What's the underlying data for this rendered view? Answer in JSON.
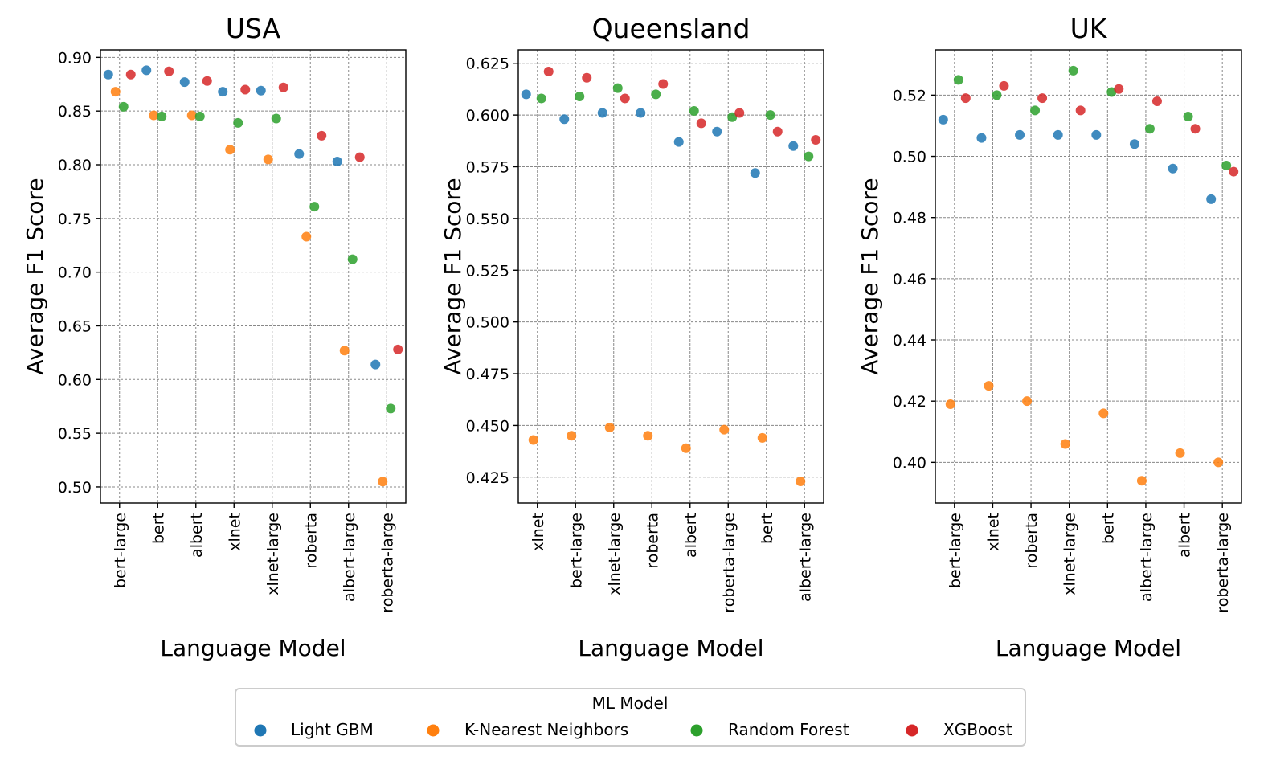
{
  "legend": {
    "title": "ML Model",
    "placement": "bottom-center",
    "entries": [
      {
        "name": "Light GBM",
        "color": "#1f77b4"
      },
      {
        "name": "K-Nearest Neighbors",
        "color": "#ff7f0e"
      },
      {
        "name": "Random Forest",
        "color": "#2ca02c"
      },
      {
        "name": "XGBoost",
        "color": "#d62728"
      }
    ]
  },
  "chart_data": [
    {
      "type": "scatter",
      "title": "USA",
      "xlabel": "Language Model",
      "ylabel": "Average F1 Score",
      "grid": true,
      "categories": [
        "bert-large",
        "bert",
        "albert",
        "xlnet",
        "xlnet-large",
        "roberta",
        "albert-large",
        "roberta-large"
      ],
      "ylim": [
        0.485,
        0.907
      ],
      "yticks": [
        0.5,
        0.55,
        0.6,
        0.65,
        0.7,
        0.75,
        0.8,
        0.85,
        0.9
      ],
      "ytick_labels": [
        "0.50",
        "0.55",
        "0.60",
        "0.65",
        "0.70",
        "0.75",
        "0.80",
        "0.85",
        "0.90"
      ],
      "series": [
        {
          "name": "Light GBM",
          "values": [
            0.884,
            0.888,
            0.877,
            0.868,
            0.869,
            0.81,
            0.803,
            0.614
          ]
        },
        {
          "name": "K-Nearest Neighbors",
          "values": [
            0.868,
            0.846,
            0.846,
            0.814,
            0.805,
            0.733,
            0.627,
            0.505
          ]
        },
        {
          "name": "Random Forest",
          "values": [
            0.854,
            0.845,
            0.845,
            0.839,
            0.843,
            0.761,
            0.712,
            0.573
          ]
        },
        {
          "name": "XGBoost",
          "values": [
            0.884,
            0.887,
            0.878,
            0.87,
            0.872,
            0.827,
            0.807,
            0.628
          ]
        }
      ]
    },
    {
      "type": "scatter",
      "title": "Queensland",
      "xlabel": "Language Model",
      "ylabel": "Average F1 Score",
      "grid": true,
      "categories": [
        "xlnet",
        "bert-large",
        "xlnet-large",
        "roberta",
        "albert",
        "roberta-large",
        "bert",
        "albert-large"
      ],
      "ylim": [
        0.4125,
        0.6315
      ],
      "yticks": [
        0.425,
        0.45,
        0.475,
        0.5,
        0.525,
        0.55,
        0.575,
        0.6,
        0.625
      ],
      "ytick_labels": [
        "0.425",
        "0.450",
        "0.475",
        "0.500",
        "0.525",
        "0.550",
        "0.575",
        "0.600",
        "0.625"
      ],
      "series": [
        {
          "name": "Light GBM",
          "values": [
            0.61,
            0.598,
            0.601,
            0.601,
            0.587,
            0.592,
            0.572,
            0.585
          ]
        },
        {
          "name": "K-Nearest Neighbors",
          "values": [
            0.443,
            0.445,
            0.449,
            0.445,
            0.439,
            0.448,
            0.444,
            0.423
          ]
        },
        {
          "name": "Random Forest",
          "values": [
            0.608,
            0.609,
            0.613,
            0.61,
            0.602,
            0.599,
            0.6,
            0.58
          ]
        },
        {
          "name": "XGBoost",
          "values": [
            0.621,
            0.618,
            0.608,
            0.615,
            0.596,
            0.601,
            0.592,
            0.588
          ]
        }
      ]
    },
    {
      "type": "scatter",
      "title": "UK",
      "xlabel": "Language Model",
      "ylabel": "Average F1 Score",
      "grid": true,
      "categories": [
        "bert-large",
        "xlnet",
        "roberta",
        "xlnet-large",
        "bert",
        "albert-large",
        "albert",
        "roberta-large"
      ],
      "ylim": [
        0.3867,
        0.5348
      ],
      "yticks": [
        0.4,
        0.42,
        0.44,
        0.46,
        0.48,
        0.5,
        0.52
      ],
      "ytick_labels": [
        "0.40",
        "0.42",
        "0.44",
        "0.46",
        "0.48",
        "0.50",
        "0.52"
      ],
      "series": [
        {
          "name": "Light GBM",
          "values": [
            0.512,
            0.506,
            0.507,
            0.507,
            0.507,
            0.504,
            0.496,
            0.486
          ]
        },
        {
          "name": "K-Nearest Neighbors",
          "values": [
            0.419,
            0.425,
            0.42,
            0.406,
            0.416,
            0.394,
            0.403,
            0.4
          ]
        },
        {
          "name": "Random Forest",
          "values": [
            0.525,
            0.52,
            0.515,
            0.528,
            0.521,
            0.509,
            0.513,
            0.497
          ]
        },
        {
          "name": "XGBoost",
          "values": [
            0.519,
            0.523,
            0.519,
            0.515,
            0.522,
            0.518,
            0.509,
            0.495
          ]
        }
      ]
    }
  ]
}
